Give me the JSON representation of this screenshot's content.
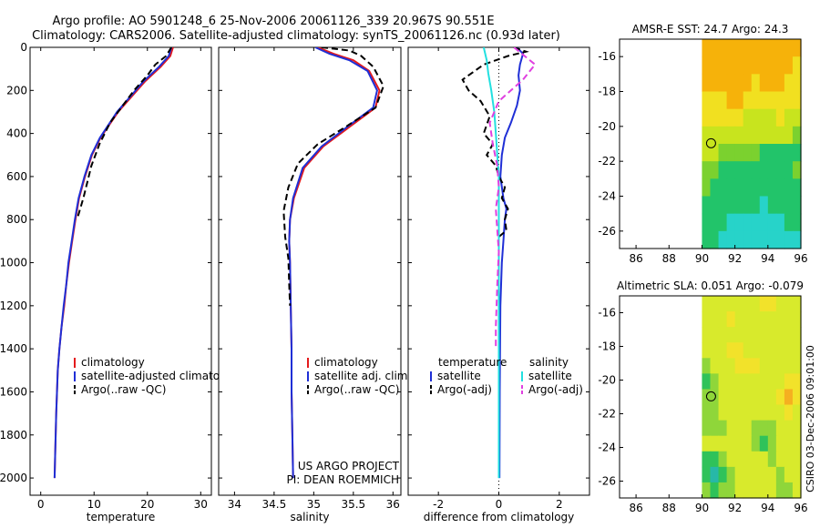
{
  "title": {
    "line1": "Argo profile: AO 5901248_6 25-Nov-2006 20061126_339 20.967S 90.551E",
    "line2": "Climatology: CARS2006. Satellite-adjusted climatology: synTS_20061126.nc (0.93d later)"
  },
  "side_text": "CSIRO 03-Dec-2006 09:01:00",
  "colors": {
    "climatology": "#e41a1c",
    "satellite": "#1f2fd6",
    "argo": "#000000",
    "sat_salinity": "#22e0e0",
    "argo_salinity": "#e040e0"
  },
  "chart_data": [
    {
      "type": "line",
      "id": "temperature",
      "xlabel": "temperature",
      "ylabel": "",
      "xlim": [
        -2,
        32
      ],
      "ylim": [
        2080,
        0
      ],
      "xticks": [
        0,
        10,
        20,
        30
      ],
      "yticks": [
        0,
        200,
        400,
        600,
        800,
        1000,
        1200,
        1400,
        1600,
        1800,
        2000
      ],
      "ytick_labels": [
        "0",
        "200",
        "400",
        "600",
        "800",
        "1000",
        "1200",
        "1400",
        "1600",
        "1800",
        "2000"
      ],
      "legend": [
        "climatology",
        "satellite-adjusted climatology",
        "Argo(..raw -QC)"
      ],
      "series": [
        {
          "name": "climatology",
          "color": "#e41a1c",
          "dash": "",
          "x": [
            24.8,
            24.3,
            22.5,
            19.5,
            14.5,
            11.2,
            9.6,
            8.3,
            7.2,
            6.5,
            5.9,
            5.3,
            4.8,
            4.4,
            3.9,
            3.5,
            3.2,
            2.9,
            2.6
          ],
          "y": [
            0,
            40,
            90,
            160,
            300,
            420,
            500,
            600,
            700,
            800,
            900,
            1000,
            1100,
            1200,
            1300,
            1400,
            1500,
            1700,
            2000
          ]
        },
        {
          "name": "satellite-adjusted climatology",
          "color": "#1f2fd6",
          "dash": "",
          "x": [
            24.5,
            24.0,
            22.2,
            19.2,
            14.3,
            11.1,
            9.5,
            8.2,
            7.1,
            6.4,
            5.8,
            5.2,
            4.8,
            4.3,
            3.9,
            3.5,
            3.2,
            2.9,
            2.6
          ],
          "y": [
            0,
            40,
            90,
            160,
            300,
            420,
            500,
            600,
            700,
            800,
            900,
            1000,
            1100,
            1200,
            1300,
            1400,
            1500,
            1700,
            2000
          ]
        },
        {
          "name": "Argo(..raw -QC)",
          "color": "#000000",
          "dash": "7,4",
          "x": [
            24.5,
            23.5,
            21.5,
            20.0,
            17.5,
            13.0,
            11.0,
            9.5,
            8.0,
            6.8
          ],
          "y": [
            0,
            40,
            80,
            130,
            200,
            350,
            450,
            550,
            700,
            800
          ]
        }
      ]
    },
    {
      "type": "line",
      "id": "salinity",
      "xlabel": "salinity",
      "xlim": [
        33.8,
        36.1
      ],
      "ylim": [
        2080,
        0
      ],
      "xticks": [
        34,
        34.5,
        35,
        35.5,
        36
      ],
      "legend": [
        "climatology",
        "satellite adj. clim.",
        "Argo(..raw -QC)"
      ],
      "series": [
        {
          "name": "climatology",
          "color": "#e41a1c",
          "dash": "",
          "x": [
            35.05,
            35.25,
            35.5,
            35.7,
            35.83,
            35.78,
            35.45,
            35.12,
            34.88,
            34.75,
            34.7,
            34.69,
            34.7,
            34.71,
            34.72,
            34.72,
            34.73,
            34.74
          ],
          "y": [
            0,
            30,
            60,
            110,
            200,
            280,
            370,
            460,
            560,
            700,
            800,
            900,
            1000,
            1200,
            1400,
            1600,
            1800,
            2000
          ]
        },
        {
          "name": "satellite adj. clim.",
          "color": "#1f2fd6",
          "dash": "",
          "x": [
            35.02,
            35.2,
            35.45,
            35.68,
            35.8,
            35.75,
            35.42,
            35.1,
            34.86,
            34.74,
            34.7,
            34.69,
            34.7,
            34.71,
            34.72,
            34.72,
            34.73,
            34.74
          ],
          "y": [
            0,
            30,
            60,
            110,
            200,
            280,
            370,
            460,
            560,
            700,
            800,
            900,
            1000,
            1200,
            1400,
            1600,
            1800,
            2000
          ]
        },
        {
          "name": "Argo(..raw -QC)",
          "color": "#000000",
          "dash": "7,4",
          "x": [
            35.1,
            35.45,
            35.6,
            35.75,
            35.88,
            35.78,
            35.4,
            35.05,
            34.8,
            34.68,
            34.62,
            34.64,
            34.68,
            34.69,
            34.7
          ],
          "y": [
            0,
            15,
            40,
            90,
            180,
            280,
            370,
            450,
            540,
            650,
            760,
            880,
            980,
            1100,
            1200
          ]
        }
      ],
      "annotations": [
        "US ARGO PROJECT",
        "PI: DEAN ROEMMICH"
      ]
    },
    {
      "type": "line",
      "id": "difference",
      "xlabel": "difference from climatology",
      "xlim": [
        -3,
        3
      ],
      "ylim": [
        2080,
        0
      ],
      "xticks": [
        -2,
        0,
        2
      ],
      "legend_groups": [
        {
          "header": "temperature",
          "items": [
            "satellite",
            "Argo(-adj)"
          ]
        },
        {
          "header": "salinity",
          "items": [
            "satellite",
            "Argo(-adj)"
          ]
        }
      ],
      "series": [
        {
          "name": "temperature satellite",
          "color": "#1f2fd6",
          "dash": "",
          "x": [
            0.6,
            0.8,
            0.7,
            0.65,
            0.7,
            0.6,
            0.4,
            0.2,
            0.1,
            0.05,
            0.15,
            0.25,
            0.2,
            0.15,
            0.1,
            0.05,
            0.03,
            0.02
          ],
          "y": [
            0,
            30,
            80,
            130,
            200,
            270,
            350,
            420,
            500,
            600,
            700,
            750,
            800,
            900,
            1000,
            1200,
            1600,
            2000
          ]
        },
        {
          "name": "temperature Argo(-adj)",
          "color": "#000000",
          "dash": "7,4",
          "x": [
            0.5,
            0.9,
            0.3,
            -0.5,
            -1.2,
            -1.0,
            -0.6,
            -0.3,
            -0.5,
            -0.2,
            -0.4,
            -0.1,
            0.0,
            0.2,
            0.1,
            0.3,
            0.2,
            0.25,
            0.0
          ],
          "y": [
            0,
            20,
            40,
            80,
            150,
            200,
            250,
            320,
            400,
            450,
            500,
            550,
            600,
            650,
            700,
            750,
            800,
            850,
            880
          ]
        },
        {
          "name": "salinity satellite",
          "color": "#22e0e0",
          "dash": "",
          "x": [
            -0.5,
            -0.4,
            -0.35,
            -0.25,
            -0.15,
            -0.1,
            -0.05,
            0.0,
            0.0,
            0.0,
            0.0
          ],
          "y": [
            0,
            60,
            120,
            200,
            300,
            400,
            500,
            600,
            800,
            1200,
            2000
          ]
        },
        {
          "name": "salinity Argo(-adj)",
          "color": "#e040e0",
          "dash": "7,4",
          "x": [
            0.5,
            1.2,
            0.8,
            0.4,
            0.0,
            -0.3,
            -0.2,
            -0.05,
            0.0,
            -0.1,
            -0.05,
            0.0,
            -0.05,
            -0.1,
            -0.1
          ],
          "y": [
            0,
            80,
            150,
            200,
            250,
            350,
            450,
            550,
            650,
            750,
            850,
            950,
            1100,
            1300,
            1400
          ]
        }
      ]
    },
    {
      "type": "heatmap",
      "id": "sst_map",
      "title": "AMSR-E SST: 24.7  Argo: 24.3",
      "xlim": [
        85,
        96
      ],
      "ylim": [
        -27,
        -15
      ],
      "xticks": [
        86,
        88,
        90,
        92,
        94,
        96
      ],
      "yticks": [
        -16,
        -18,
        -20,
        -22,
        -24,
        -26
      ],
      "data_lon_min": 90,
      "marker": {
        "lon": 90.551,
        "lat": -20.967
      },
      "colormap": [
        "#27d3c9",
        "#22c46a",
        "#7bd12f",
        "#c8e41e",
        "#f1e020",
        "#f6b20a"
      ],
      "grid": [
        [
          5,
          5,
          5,
          5,
          5,
          5,
          5,
          5,
          5,
          5,
          5,
          5
        ],
        [
          5,
          5,
          5,
          5,
          5,
          5,
          5,
          5,
          5,
          5,
          5,
          4
        ],
        [
          5,
          5,
          5,
          5,
          5,
          5,
          4,
          5,
          5,
          5,
          4,
          4
        ],
        [
          4,
          4,
          4,
          5,
          5,
          4,
          4,
          4,
          4,
          4,
          4,
          4
        ],
        [
          4,
          4,
          4,
          4,
          4,
          3,
          3,
          3,
          3,
          4,
          3,
          3
        ],
        [
          3,
          3,
          3,
          3,
          3,
          3,
          3,
          3,
          3,
          3,
          3,
          2
        ],
        [
          3,
          3,
          2,
          2,
          2,
          2,
          2,
          1,
          1,
          1,
          1,
          1
        ],
        [
          2,
          2,
          1,
          1,
          1,
          1,
          1,
          1,
          1,
          1,
          1,
          2
        ],
        [
          2,
          1,
          1,
          1,
          1,
          1,
          1,
          1,
          1,
          1,
          1,
          1
        ],
        [
          1,
          1,
          1,
          1,
          1,
          1,
          1,
          0,
          1,
          1,
          1,
          1
        ],
        [
          1,
          1,
          1,
          0,
          0,
          0,
          0,
          0,
          0,
          0,
          1,
          1
        ],
        [
          1,
          1,
          0,
          0,
          0,
          0,
          0,
          0,
          0,
          0,
          0,
          0
        ]
      ]
    },
    {
      "type": "heatmap",
      "id": "sla_map",
      "title": "Altimetric SLA: 0.051  Argo: -0.079",
      "xlim": [
        85,
        96
      ],
      "ylim": [
        -27,
        -15
      ],
      "xticks": [
        86,
        88,
        90,
        92,
        94,
        96
      ],
      "yticks": [
        -16,
        -18,
        -20,
        -22,
        -24,
        -26
      ],
      "data_lon_min": 90,
      "marker": {
        "lon": 90.551,
        "lat": -20.967
      },
      "colormap": [
        "#27b8a8",
        "#2fc25a",
        "#8fd63a",
        "#d8ea2c",
        "#f2e22a",
        "#f5b020"
      ],
      "grid": [
        [
          3,
          3,
          3,
          3,
          3,
          3,
          3,
          4,
          4,
          3,
          3,
          3
        ],
        [
          3,
          3,
          3,
          4,
          3,
          3,
          3,
          3,
          3,
          3,
          3,
          3
        ],
        [
          3,
          3,
          3,
          3,
          3,
          3,
          3,
          3,
          3,
          3,
          3,
          3
        ],
        [
          3,
          3,
          3,
          4,
          4,
          3,
          3,
          3,
          3,
          3,
          3,
          3
        ],
        [
          2,
          3,
          3,
          3,
          4,
          4,
          4,
          3,
          3,
          3,
          3,
          3
        ],
        [
          1,
          2,
          3,
          3,
          3,
          3,
          3,
          3,
          3,
          3,
          4,
          4
        ],
        [
          2,
          2,
          3,
          3,
          3,
          3,
          3,
          3,
          3,
          4,
          5,
          4
        ],
        [
          2,
          2,
          3,
          3,
          3,
          3,
          3,
          3,
          3,
          3,
          4,
          3
        ],
        [
          2,
          2,
          2,
          3,
          3,
          3,
          2,
          2,
          2,
          3,
          3,
          3
        ],
        [
          3,
          3,
          3,
          3,
          3,
          3,
          2,
          1,
          2,
          3,
          3,
          3
        ],
        [
          1,
          1,
          2,
          3,
          3,
          3,
          3,
          3,
          2,
          3,
          3,
          3
        ],
        [
          1,
          0,
          1,
          2,
          3,
          3,
          3,
          3,
          3,
          2,
          3,
          3
        ],
        [
          2,
          1,
          2,
          2,
          3,
          3,
          3,
          3,
          3,
          2,
          2,
          3
        ]
      ]
    }
  ]
}
